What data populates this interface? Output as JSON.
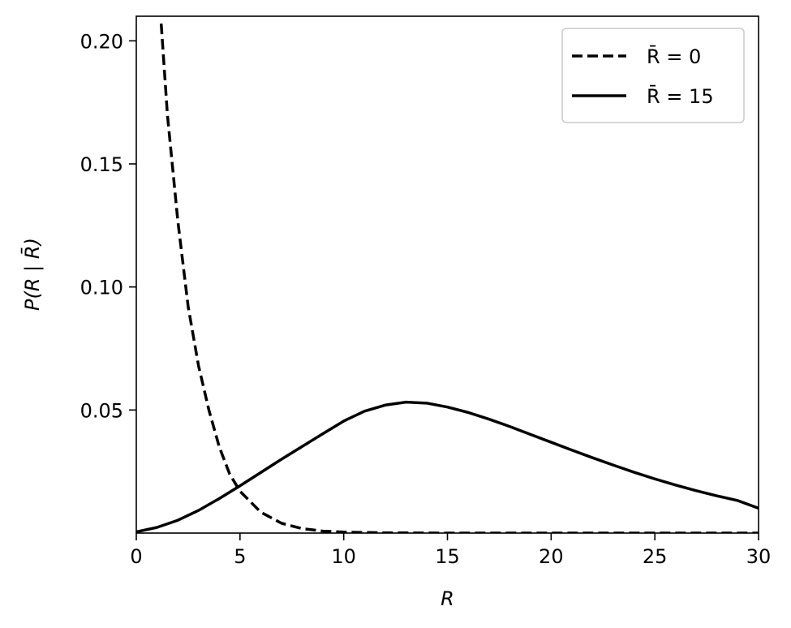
{
  "chart_data": {
    "type": "line",
    "title": "",
    "xlabel": "R",
    "ylabel": "P(R | R̄)",
    "xlim": [
      0,
      30
    ],
    "ylim": [
      0,
      0.21
    ],
    "grid": false,
    "legend_position": "top-right",
    "x_ticks": [
      0,
      5,
      10,
      15,
      20,
      25,
      30
    ],
    "y_ticks": [
      0.05,
      0.1,
      0.15,
      0.2
    ],
    "x_tick_labels": [
      "0",
      "5",
      "10",
      "15",
      "20",
      "25",
      "30"
    ],
    "y_tick_labels": [
      "0.05",
      "0.10",
      "0.15",
      "0.20"
    ],
    "series": [
      {
        "name": "R̄ = 0",
        "style": "dashed",
        "color": "#000000",
        "x": [
          1.2,
          1.5,
          2.0,
          2.5,
          3.0,
          3.5,
          4.0,
          4.5,
          5.0,
          6.0,
          7.0,
          8.0,
          9.0,
          10.0,
          12.0,
          15.0,
          20.0,
          25.0,
          30.0
        ],
        "y": [
          0.207,
          0.17,
          0.127,
          0.092,
          0.068,
          0.05,
          0.035,
          0.024,
          0.017,
          0.0085,
          0.004,
          0.0018,
          0.0008,
          0.0004,
          0.0001,
          0.0,
          0.0,
          0.0,
          0.0
        ]
      },
      {
        "name": "R̄ = 15",
        "style": "solid",
        "color": "#000000",
        "x": [
          0,
          1,
          2,
          3,
          4,
          5,
          6,
          7,
          8,
          9,
          10,
          11,
          12,
          13,
          14,
          15,
          16,
          17,
          18,
          19,
          20,
          21,
          22,
          23,
          24,
          25,
          26,
          27,
          28,
          29,
          30
        ],
        "y": [
          0.0005,
          0.0023,
          0.0052,
          0.0092,
          0.014,
          0.0192,
          0.0246,
          0.03,
          0.0352,
          0.0404,
          0.0455,
          0.0495,
          0.052,
          0.0532,
          0.0528,
          0.0512,
          0.049,
          0.0463,
          0.0433,
          0.0401,
          0.0369,
          0.0337,
          0.0306,
          0.0276,
          0.0247,
          0.022,
          0.0195,
          0.0172,
          0.0151,
          0.0132,
          0.0101
        ]
      }
    ]
  }
}
